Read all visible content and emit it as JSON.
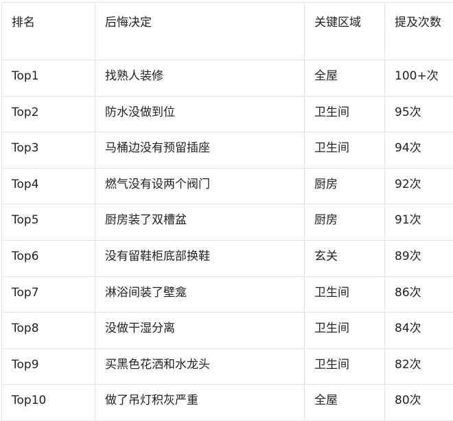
{
  "table": {
    "headers": [
      "排名",
      "后悔决定",
      "关键区域",
      "提及次数"
    ],
    "rows": [
      [
        "Top1",
        "找熟人装修",
        "全屋",
        "100+次"
      ],
      [
        "Top2",
        "防水没做到位",
        "卫生间",
        "95次"
      ],
      [
        "Top3",
        "马桶边没有预留插座",
        "卫生间",
        "94次"
      ],
      [
        "Top4",
        "燃气没有设两个阀门",
        "厨房",
        "92次"
      ],
      [
        "Top5",
        "厨房装了双槽盆",
        "厨房",
        "91次"
      ],
      [
        "Top6",
        "没有留鞋柜底部换鞋",
        "玄关",
        "89次"
      ],
      [
        "Top7",
        "淋浴间装了壁龛",
        "卫生间",
        "86次"
      ],
      [
        "Top8",
        "没做干湿分离",
        "卫生间",
        "84次"
      ],
      [
        "Top9",
        "买黑色花洒和水龙头",
        "卫生间",
        "82次"
      ],
      [
        "Top10",
        "做了吊灯积灰严重",
        "全屋",
        "80次"
      ]
    ]
  }
}
